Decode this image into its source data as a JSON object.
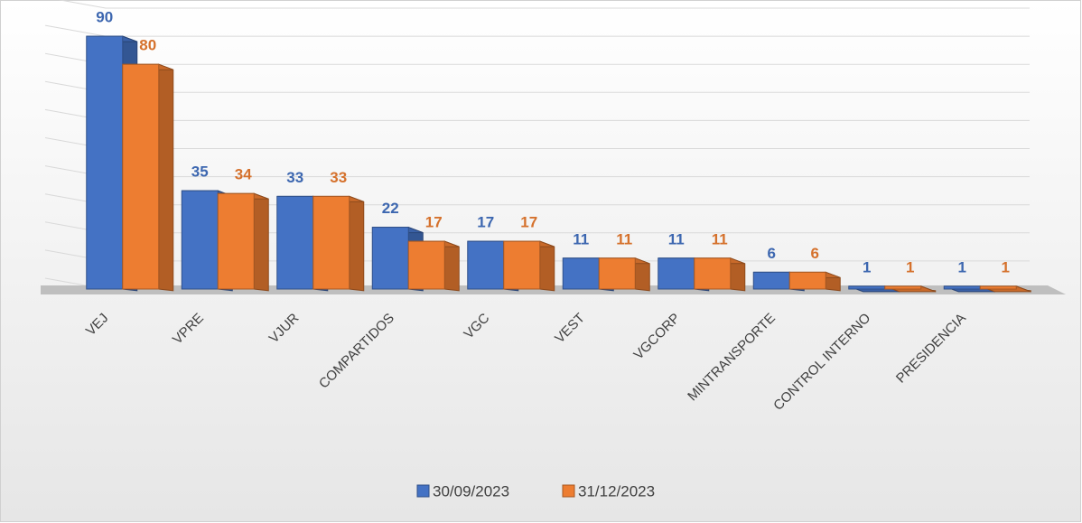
{
  "chart_data": {
    "type": "bar3d",
    "categories": [
      "VEJ",
      "VPRE",
      "VJUR",
      "COMPARTIDOS",
      "VGC",
      "VEST",
      "VGCORP",
      "MINTRANSPORTE",
      "CONTROL INTERNO",
      "PRESIDENCIA"
    ],
    "series": [
      {
        "name": "30/09/2023",
        "color": "#4472c4",
        "values": [
          90,
          35,
          33,
          22,
          17,
          11,
          11,
          6,
          1,
          1
        ]
      },
      {
        "name": "31/12/2023",
        "color": "#ed7d31",
        "values": [
          80,
          34,
          33,
          17,
          17,
          11,
          11,
          6,
          1,
          1
        ]
      }
    ],
    "ylim": [
      0,
      100
    ],
    "yticks": [
      0,
      10,
      20,
      30,
      40,
      50,
      60,
      70,
      80,
      90,
      100
    ],
    "grid": true
  }
}
